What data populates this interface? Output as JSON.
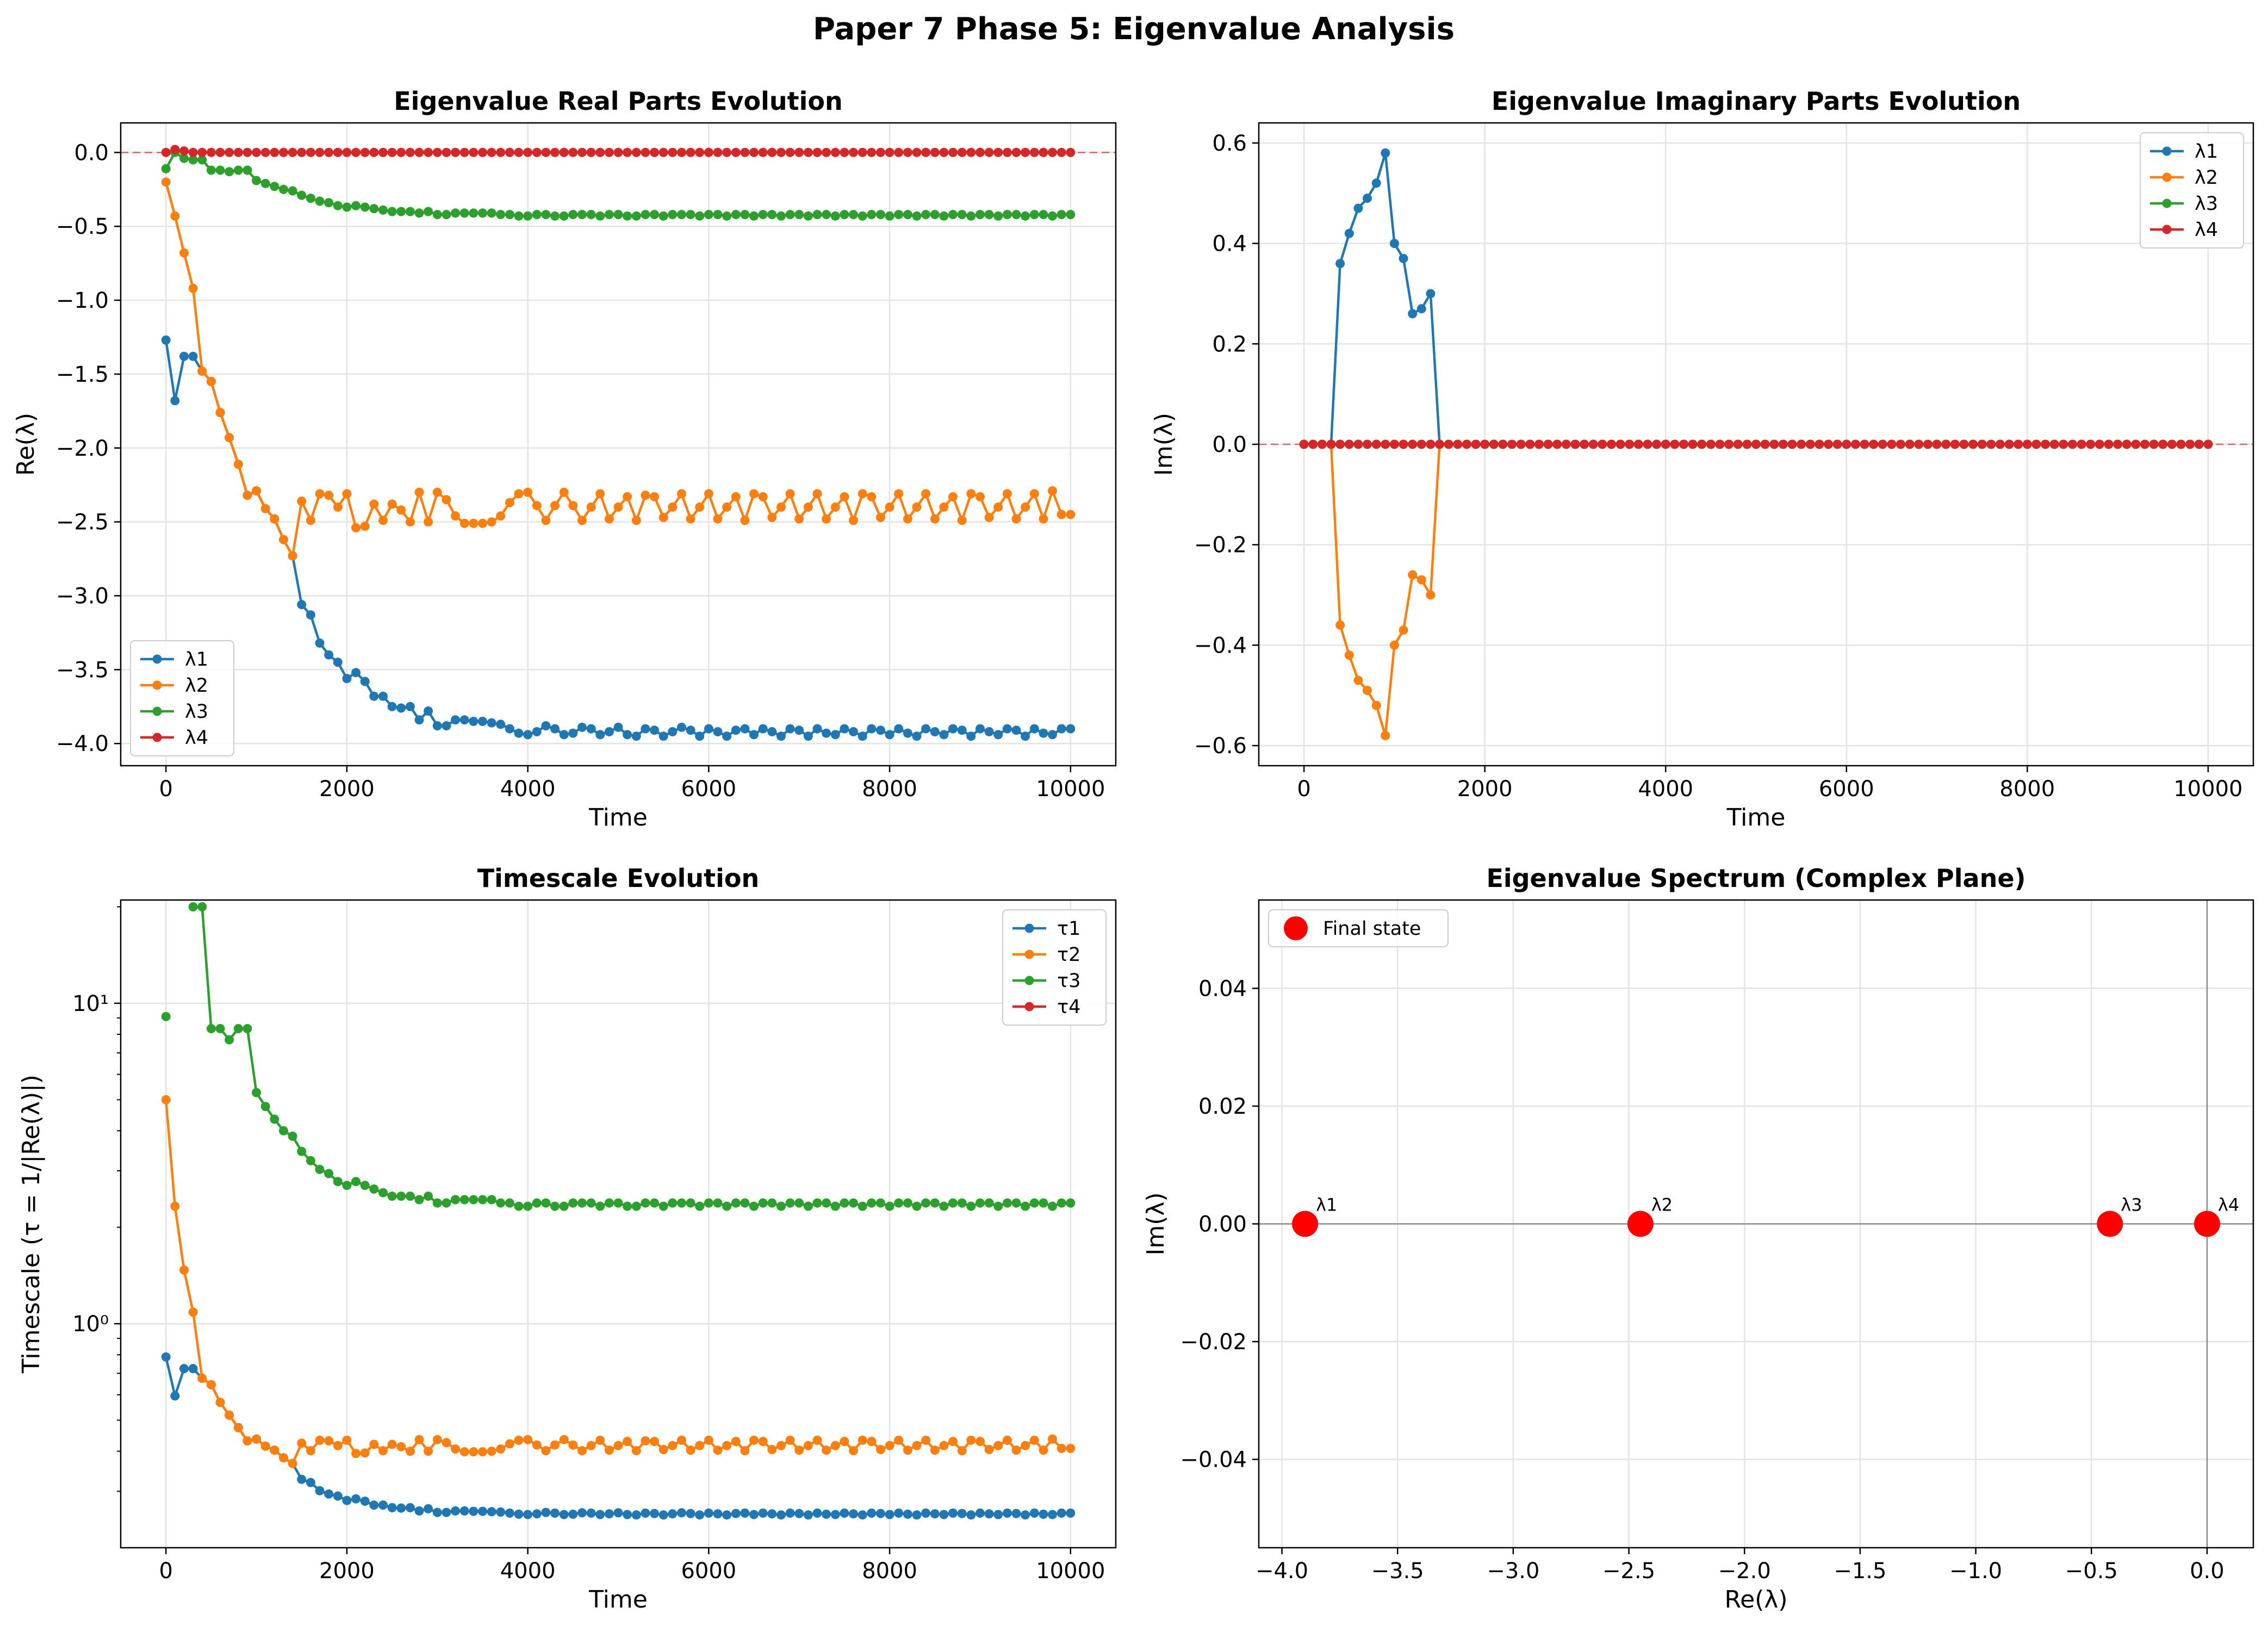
{
  "figure": {
    "title": "Paper 7 Phase 5: Eigenvalue Analysis"
  },
  "colors": {
    "lambda1": "#1f77b4",
    "lambda2": "#ff7f0e",
    "lambda3": "#2ca02c",
    "lambda4": "#d62728",
    "final_state": "#ff0000",
    "zero_line": "#e06060"
  },
  "chart_data": [
    {
      "id": "real",
      "type": "line",
      "title": "Eigenvalue Real Parts Evolution",
      "xlabel": "Time",
      "ylabel": "Re(λ)",
      "xlim": [
        -500,
        10500
      ],
      "ylim": [
        -4.15,
        0.2
      ],
      "xticks": [
        0,
        2000,
        4000,
        6000,
        8000,
        10000
      ],
      "xtick_labels": [
        "0",
        "2000",
        "4000",
        "6000",
        "8000",
        "10000"
      ],
      "yticks": [
        0.0,
        -0.5,
        -1.0,
        -1.5,
        -2.0,
        -2.5,
        -3.0,
        -3.5,
        -4.0
      ],
      "ytick_labels": [
        "0.0",
        "−0.5",
        "−1.0",
        "−1.5",
        "−2.0",
        "−2.5",
        "−3.0",
        "−3.5",
        "−4.0"
      ],
      "grid": true,
      "reference_line": {
        "y": 0,
        "style": "dashed"
      },
      "legend": "lower-left",
      "x": {
        "start": 0,
        "step": 100,
        "count": 101
      },
      "series": [
        {
          "name": "λ1",
          "values": [
            -1.27,
            -1.68,
            -1.38,
            -1.38,
            -1.48,
            -1.55,
            -1.76,
            -1.93,
            -2.11,
            -2.32,
            -2.29,
            -2.41,
            -2.48,
            -2.62,
            -2.73,
            -3.06,
            -3.13,
            -3.32,
            -3.4,
            -3.45,
            -3.56,
            -3.52,
            -3.58,
            -3.68,
            -3.68,
            -3.75,
            -3.76,
            -3.75,
            -3.84,
            -3.78,
            -3.88,
            -3.88,
            -3.84,
            -3.84,
            -3.85,
            -3.85,
            -3.86,
            -3.87,
            -3.9,
            -3.93,
            -3.94,
            -3.92,
            -3.88,
            -3.9,
            -3.94,
            -3.93,
            -3.89,
            -3.9,
            -3.94,
            -3.92,
            -3.89,
            -3.94,
            -3.95,
            -3.9,
            -3.91,
            -3.95,
            -3.92,
            -3.89,
            -3.91,
            -3.95,
            -3.9,
            -3.92,
            -3.95,
            -3.91,
            -3.9,
            -3.94,
            -3.9,
            -3.92,
            -3.95,
            -3.9,
            -3.91,
            -3.95,
            -3.9,
            -3.93,
            -3.94,
            -3.9,
            -3.92,
            -3.95,
            -3.9,
            -3.91,
            -3.94,
            -3.9,
            -3.93,
            -3.95,
            -3.9,
            -3.92,
            -3.94,
            -3.9,
            -3.91,
            -3.95,
            -3.9,
            -3.92,
            -3.94,
            -3.9,
            -3.91,
            -3.95,
            -3.9,
            -3.93,
            -3.94,
            -3.9,
            -3.9
          ]
        },
        {
          "name": "λ2",
          "values": [
            -0.2,
            -0.43,
            -0.68,
            -0.92,
            -1.48,
            -1.55,
            -1.76,
            -1.93,
            -2.11,
            -2.32,
            -2.29,
            -2.41,
            -2.48,
            -2.62,
            -2.73,
            -2.36,
            -2.49,
            -2.31,
            -2.32,
            -2.4,
            -2.31,
            -2.54,
            -2.53,
            -2.38,
            -2.49,
            -2.38,
            -2.42,
            -2.5,
            -2.3,
            -2.5,
            -2.3,
            -2.35,
            -2.46,
            -2.51,
            -2.51,
            -2.51,
            -2.5,
            -2.46,
            -2.37,
            -2.31,
            -2.3,
            -2.39,
            -2.49,
            -2.39,
            -2.3,
            -2.39,
            -2.49,
            -2.4,
            -2.31,
            -2.48,
            -2.4,
            -2.33,
            -2.49,
            -2.32,
            -2.33,
            -2.47,
            -2.4,
            -2.31,
            -2.48,
            -2.4,
            -2.31,
            -2.48,
            -2.4,
            -2.33,
            -2.49,
            -2.31,
            -2.33,
            -2.47,
            -2.4,
            -2.31,
            -2.48,
            -2.4,
            -2.31,
            -2.48,
            -2.4,
            -2.33,
            -2.49,
            -2.31,
            -2.33,
            -2.47,
            -2.4,
            -2.31,
            -2.48,
            -2.4,
            -2.31,
            -2.48,
            -2.4,
            -2.33,
            -2.49,
            -2.31,
            -2.33,
            -2.47,
            -2.4,
            -2.31,
            -2.48,
            -2.4,
            -2.31,
            -2.48,
            -2.29,
            -2.45,
            -2.45
          ]
        },
        {
          "name": "λ3",
          "values": [
            -0.11,
            -0.0,
            -0.04,
            -0.05,
            -0.05,
            -0.12,
            -0.12,
            -0.13,
            -0.12,
            -0.12,
            -0.19,
            -0.21,
            -0.23,
            -0.25,
            -0.26,
            -0.29,
            -0.31,
            -0.33,
            -0.34,
            -0.36,
            -0.37,
            -0.36,
            -0.37,
            -0.38,
            -0.39,
            -0.4,
            -0.4,
            -0.4,
            -0.41,
            -0.4,
            -0.42,
            -0.42,
            -0.41,
            -0.41,
            -0.41,
            -0.41,
            -0.41,
            -0.42,
            -0.42,
            -0.43,
            -0.43,
            -0.42,
            -0.42,
            -0.43,
            -0.43,
            -0.42,
            -0.42,
            -0.42,
            -0.43,
            -0.42,
            -0.42,
            -0.43,
            -0.43,
            -0.42,
            -0.42,
            -0.43,
            -0.42,
            -0.42,
            -0.42,
            -0.43,
            -0.42,
            -0.42,
            -0.43,
            -0.42,
            -0.42,
            -0.43,
            -0.42,
            -0.42,
            -0.43,
            -0.42,
            -0.42,
            -0.43,
            -0.42,
            -0.42,
            -0.43,
            -0.42,
            -0.42,
            -0.43,
            -0.42,
            -0.42,
            -0.43,
            -0.42,
            -0.42,
            -0.43,
            -0.42,
            -0.42,
            -0.43,
            -0.42,
            -0.42,
            -0.43,
            -0.42,
            -0.42,
            -0.43,
            -0.42,
            -0.42,
            -0.43,
            -0.42,
            -0.42,
            -0.43,
            -0.42,
            -0.42
          ]
        },
        {
          "name": "λ4",
          "values": [
            0.0,
            0.02,
            0.01,
            0.0,
            0.0,
            0.0,
            0.0,
            0.0,
            0.0,
            0.0,
            0.0,
            0.0,
            0.0,
            0.0,
            0.0,
            0.0,
            0.0,
            0.0,
            0.0,
            0.0,
            0.0,
            0.0,
            0.0,
            0.0,
            0.0,
            0.0,
            0.0,
            0.0,
            0.0,
            0.0,
            0.0,
            0.0,
            0.0,
            0.0,
            0.0,
            0.0,
            0.0,
            0.0,
            0.0,
            0.0,
            0.0,
            0.0,
            0.0,
            0.0,
            0.0,
            0.0,
            0.0,
            0.0,
            0.0,
            0.0,
            0.0,
            0.0,
            0.0,
            0.0,
            0.0,
            0.0,
            0.0,
            0.0,
            0.0,
            0.0,
            0.0,
            0.0,
            0.0,
            0.0,
            0.0,
            0.0,
            0.0,
            0.0,
            0.0,
            0.0,
            0.0,
            0.0,
            0.0,
            0.0,
            0.0,
            0.0,
            0.0,
            0.0,
            0.0,
            0.0,
            0.0,
            0.0,
            0.0,
            0.0,
            0.0,
            0.0,
            0.0,
            0.0,
            0.0,
            0.0,
            0.0,
            0.0,
            0.0,
            0.0,
            0.0,
            0.0,
            0.0,
            0.0,
            0.0,
            0.0,
            0.0
          ]
        }
      ]
    },
    {
      "id": "imag",
      "type": "line",
      "title": "Eigenvalue Imaginary Parts Evolution",
      "xlabel": "Time",
      "ylabel": "Im(λ)",
      "xlim": [
        -500,
        10500
      ],
      "ylim": [
        -0.64,
        0.64
      ],
      "xticks": [
        0,
        2000,
        4000,
        6000,
        8000,
        10000
      ],
      "xtick_labels": [
        "0",
        "2000",
        "4000",
        "6000",
        "8000",
        "10000"
      ],
      "yticks": [
        0.6,
        0.4,
        0.2,
        0.0,
        -0.2,
        -0.4,
        -0.6
      ],
      "ytick_labels": [
        "0.6",
        "0.4",
        "0.2",
        "0.0",
        "−0.2",
        "−0.4",
        "−0.6"
      ],
      "grid": true,
      "reference_line": {
        "y": 0,
        "style": "dashed"
      },
      "legend": "top-right",
      "x": {
        "start": 0,
        "step": 100,
        "count": 101
      },
      "series": [
        {
          "name": "λ1",
          "sparse": [
            [
              0,
              0
            ],
            [
              300,
              0
            ],
            [
              400,
              0.36
            ],
            [
              500,
              0.42
            ],
            [
              600,
              0.47
            ],
            [
              700,
              0.49
            ],
            [
              800,
              0.52
            ],
            [
              900,
              0.58
            ],
            [
              1000,
              0.4
            ],
            [
              1100,
              0.37
            ],
            [
              1200,
              0.26
            ],
            [
              1300,
              0.27
            ],
            [
              1400,
              0.3
            ],
            [
              1500,
              0
            ]
          ]
        },
        {
          "name": "λ2",
          "sparse": [
            [
              0,
              0
            ],
            [
              300,
              0
            ],
            [
              400,
              -0.36
            ],
            [
              500,
              -0.42
            ],
            [
              600,
              -0.47
            ],
            [
              700,
              -0.49
            ],
            [
              800,
              -0.52
            ],
            [
              900,
              -0.58
            ],
            [
              1000,
              -0.4
            ],
            [
              1100,
              -0.37
            ],
            [
              1200,
              -0.26
            ],
            [
              1300,
              -0.27
            ],
            [
              1400,
              -0.3
            ],
            [
              1500,
              0
            ]
          ]
        },
        {
          "name": "λ3",
          "constant": 0
        },
        {
          "name": "λ4",
          "constant": 0
        }
      ]
    },
    {
      "id": "tau",
      "type": "line",
      "title": "Timescale Evolution",
      "xlabel": "Time",
      "ylabel": "Timescale (τ = 1/|Re(λ)|)",
      "xlim": [
        -500,
        10500
      ],
      "yscale": "log",
      "ylim": [
        0.2,
        21
      ],
      "xticks": [
        0,
        2000,
        4000,
        6000,
        8000,
        10000
      ],
      "xtick_labels": [
        "0",
        "2000",
        "4000",
        "6000",
        "8000",
        "10000"
      ],
      "yticks": [
        10,
        1
      ],
      "ytick_labels": [
        "10¹",
        "10⁰"
      ],
      "grid": true,
      "legend": "top-right",
      "x": {
        "start": 0,
        "step": 100,
        "count": 101
      },
      "derived_from": "real",
      "series": [
        {
          "name": "τ1",
          "source": 0,
          "skip_until": 0
        },
        {
          "name": "τ2",
          "source": 1,
          "skip_until": 0
        },
        {
          "name": "τ3",
          "source": 2,
          "skip_until": 0,
          "gap": [
            100
          ]
        },
        {
          "name": "τ4",
          "source": 3,
          "none": true
        }
      ]
    },
    {
      "id": "spectrum",
      "type": "scatter",
      "title": "Eigenvalue Spectrum (Complex Plane)",
      "xlabel": "Re(λ)",
      "ylabel": "Im(λ)",
      "xlim": [
        -4.1,
        0.2
      ],
      "ylim": [
        -0.055,
        0.055
      ],
      "xticks": [
        -4.0,
        -3.5,
        -3.0,
        -2.5,
        -2.0,
        -1.5,
        -1.0,
        -0.5,
        0.0
      ],
      "xtick_labels": [
        "−4.0",
        "−3.5",
        "−3.0",
        "−2.5",
        "−2.0",
        "−1.5",
        "−1.0",
        "−0.5",
        "0.0"
      ],
      "yticks": [
        0.04,
        0.02,
        0.0,
        -0.02,
        -0.04
      ],
      "ytick_labels": [
        "0.04",
        "0.02",
        "0.00",
        "−0.02",
        "−0.04"
      ],
      "grid": true,
      "legend": "top-left",
      "legend_label": "Final state",
      "points": [
        {
          "label": "λ1",
          "re": -3.9,
          "im": 0.0
        },
        {
          "label": "λ2",
          "re": -2.45,
          "im": 0.0
        },
        {
          "label": "λ3",
          "re": -0.42,
          "im": 0.0
        },
        {
          "label": "λ4",
          "re": 0.0,
          "im": 0.0
        }
      ]
    }
  ]
}
